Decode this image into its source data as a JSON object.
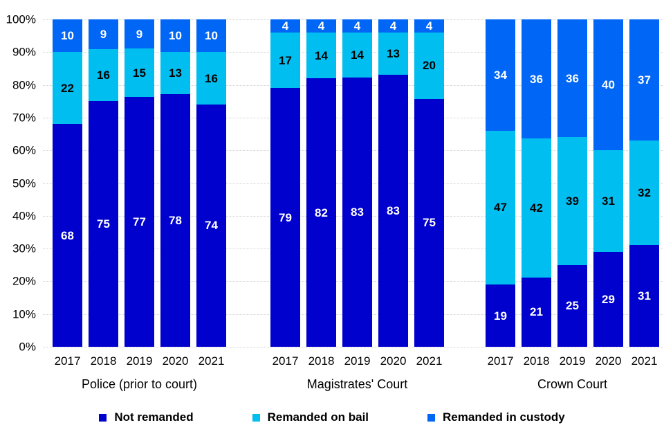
{
  "yaxis": {
    "ticks": [
      "100%",
      "90%",
      "80%",
      "70%",
      "60%",
      "50%",
      "40%",
      "30%",
      "20%",
      "10%",
      "0%"
    ]
  },
  "chart_data": {
    "type": "bar",
    "stacked": true,
    "unit": "percent",
    "ylim": [
      0,
      100
    ],
    "grid": true,
    "legend_position": "bottom",
    "years": [
      "2017",
      "2018",
      "2019",
      "2020",
      "2021"
    ],
    "series": [
      {
        "name": "Not remanded",
        "color": "#0101CD",
        "label_color": "#FFFFFF"
      },
      {
        "name": "Remanded on bail",
        "color": "#00BFF0",
        "label_color": "#000000"
      },
      {
        "name": "Remanded in custody",
        "color": "#0066F5",
        "label_color": "#FFFFFF"
      }
    ],
    "groups": [
      {
        "label": "Police (prior to court)",
        "values": [
          [
            68,
            75,
            77,
            78,
            74
          ],
          [
            22,
            16,
            15,
            13,
            16
          ],
          [
            10,
            9,
            9,
            10,
            10
          ]
        ]
      },
      {
        "label": "Magistrates' Court",
        "values": [
          [
            79,
            82,
            83,
            83,
            75
          ],
          [
            17,
            14,
            14,
            13,
            20
          ],
          [
            4,
            4,
            4,
            4,
            4
          ]
        ]
      },
      {
        "label": "Crown Court",
        "values": [
          [
            19,
            21,
            25,
            29,
            31
          ],
          [
            47,
            42,
            39,
            31,
            32
          ],
          [
            34,
            36,
            36,
            40,
            37
          ]
        ]
      }
    ]
  }
}
